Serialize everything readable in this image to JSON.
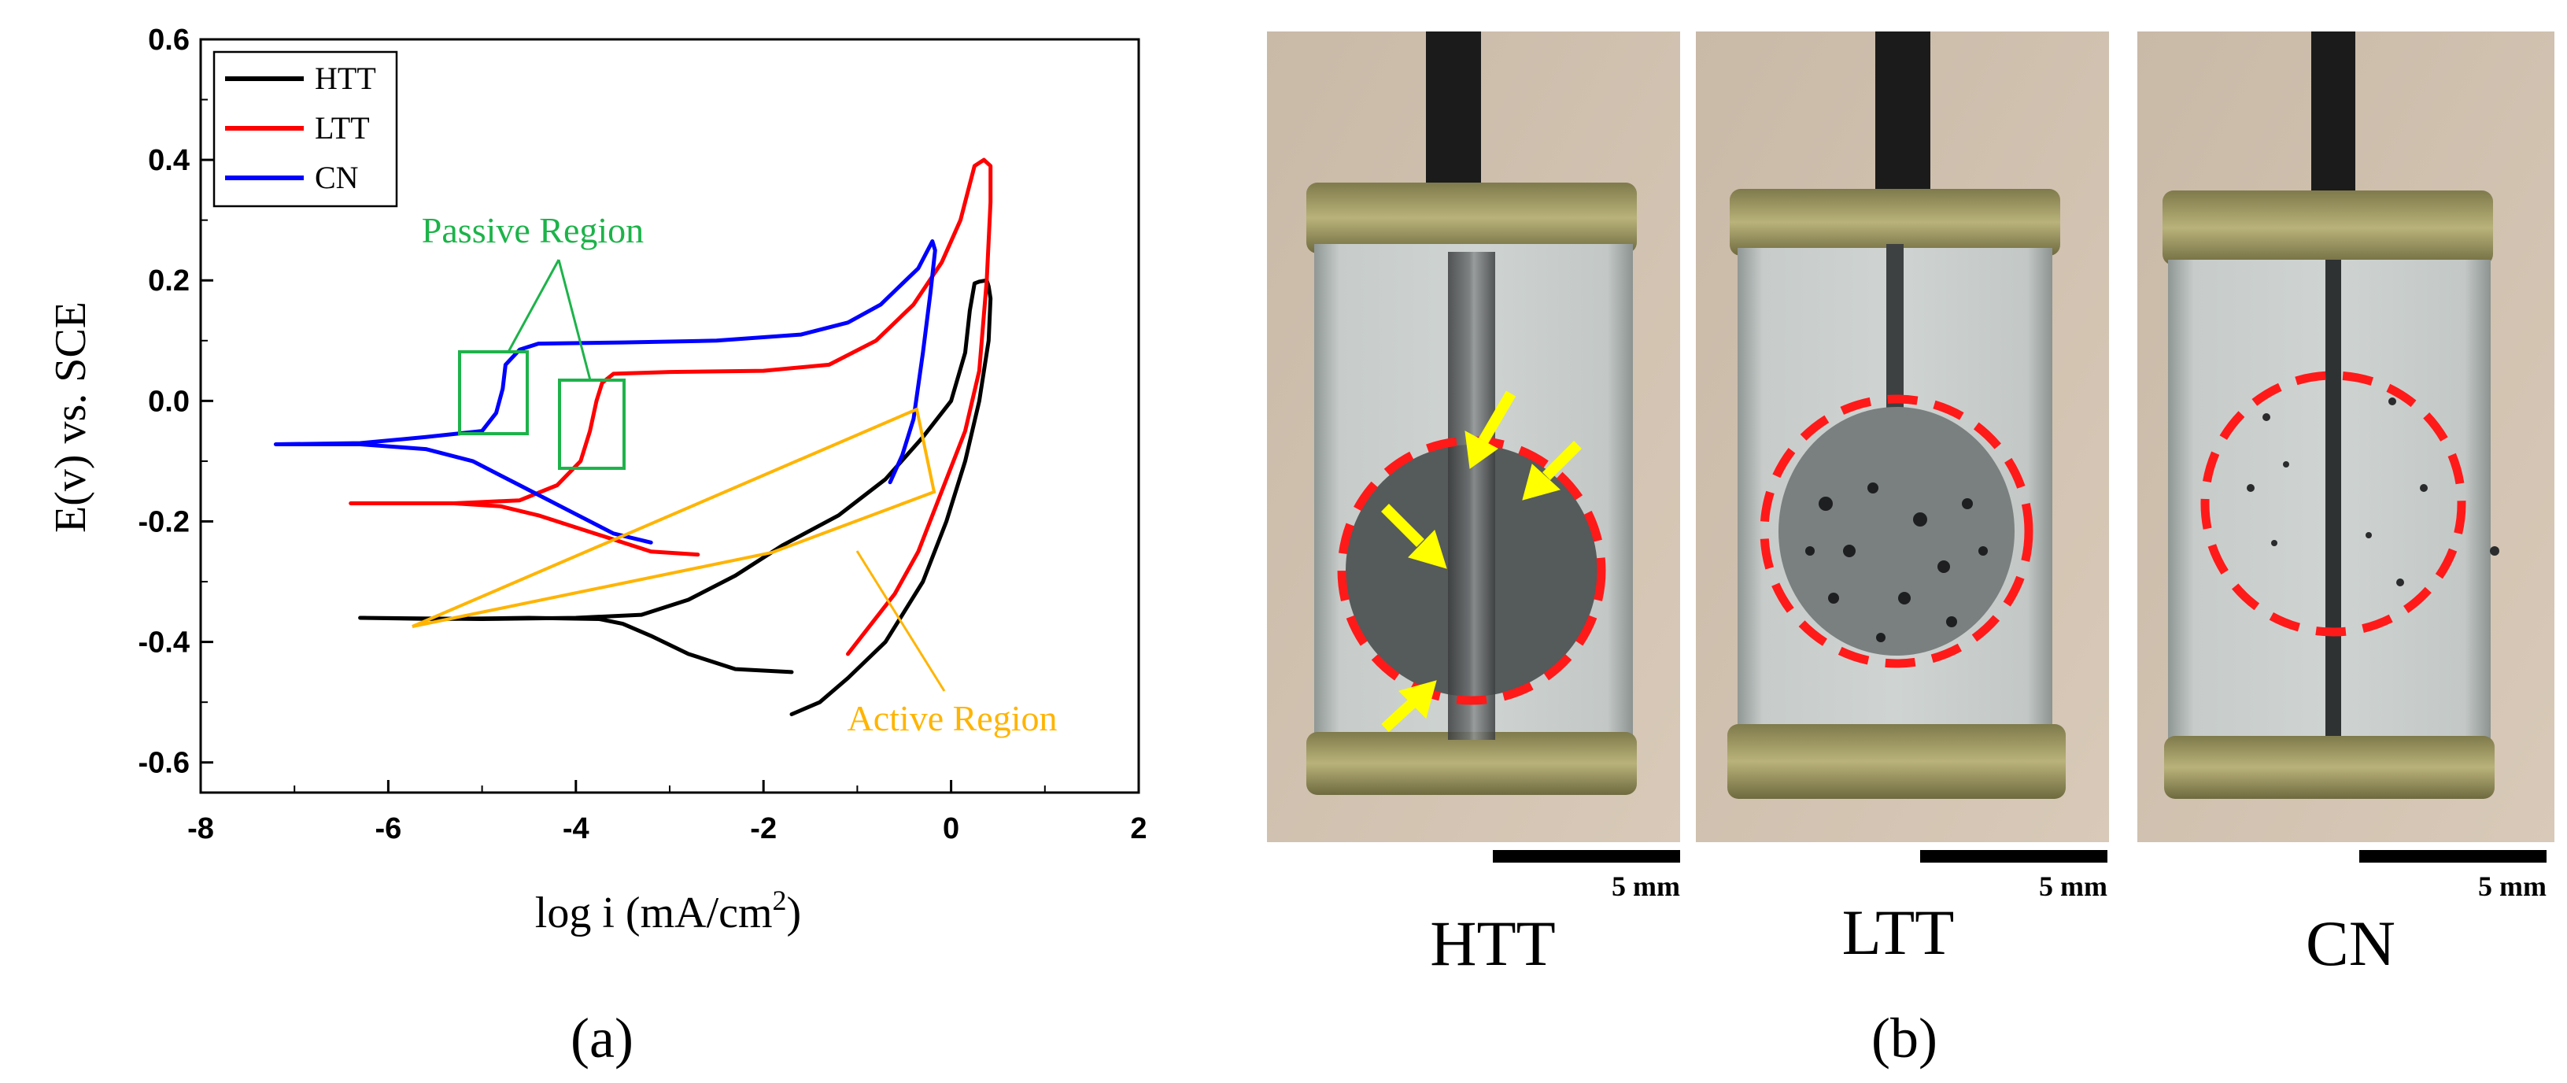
{
  "chart_data": {
    "type": "line",
    "xlabel": "log i (mA/cm",
    "xlabel_sup": "2",
    "xlabel_end": ")",
    "ylabel": "E(v) vs. SCE",
    "xlim": [
      -8,
      2
    ],
    "ylim": [
      -0.65,
      0.6
    ],
    "xticks": [
      "-8",
      "-6",
      "-4",
      "-2",
      "0",
      "2"
    ],
    "yticks": [
      "0.6",
      "0.4",
      "0.2",
      "0.0",
      "-0.2",
      "-0.4",
      "-0.6"
    ],
    "legend_position": "top-left",
    "series": [
      {
        "name": "HTT",
        "color": "#000000",
        "points": [
          [
            -1.7,
            -0.45
          ],
          [
            -2.3,
            -0.445
          ],
          [
            -2.8,
            -0.42
          ],
          [
            -3.2,
            -0.39
          ],
          [
            -3.5,
            -0.37
          ],
          [
            -3.75,
            -0.362
          ],
          [
            -4.5,
            -0.36
          ],
          [
            -5.5,
            -0.362
          ],
          [
            -6.3,
            -0.36
          ],
          [
            -5.0,
            -0.362
          ],
          [
            -4.0,
            -0.36
          ],
          [
            -3.3,
            -0.355
          ],
          [
            -2.8,
            -0.33
          ],
          [
            -2.3,
            -0.29
          ],
          [
            -1.8,
            -0.24
          ],
          [
            -1.2,
            -0.19
          ],
          [
            -0.7,
            -0.13
          ],
          [
            -0.3,
            -0.06
          ],
          [
            0.0,
            0.0
          ],
          [
            0.15,
            0.08
          ],
          [
            0.2,
            0.15
          ],
          [
            0.25,
            0.195
          ],
          [
            0.3,
            0.198
          ],
          [
            0.38,
            0.2
          ],
          [
            0.4,
            0.19
          ],
          [
            0.42,
            0.17
          ],
          [
            0.4,
            0.1
          ],
          [
            0.3,
            0.0
          ],
          [
            0.15,
            -0.1
          ],
          [
            -0.05,
            -0.2
          ],
          [
            -0.3,
            -0.3
          ],
          [
            -0.7,
            -0.4
          ],
          [
            -1.1,
            -0.46
          ],
          [
            -1.4,
            -0.5
          ],
          [
            -1.7,
            -0.52
          ]
        ]
      },
      {
        "name": "LTT",
        "color": "#ff0000",
        "points": [
          [
            -2.7,
            -0.255
          ],
          [
            -3.2,
            -0.25
          ],
          [
            -3.6,
            -0.23
          ],
          [
            -4.0,
            -0.21
          ],
          [
            -4.4,
            -0.19
          ],
          [
            -4.8,
            -0.175
          ],
          [
            -5.3,
            -0.17
          ],
          [
            -6.4,
            -0.17
          ],
          [
            -5.3,
            -0.17
          ],
          [
            -4.6,
            -0.165
          ],
          [
            -4.2,
            -0.14
          ],
          [
            -3.95,
            -0.1
          ],
          [
            -3.85,
            -0.05
          ],
          [
            -3.78,
            0.0
          ],
          [
            -3.72,
            0.03
          ],
          [
            -3.6,
            0.045
          ],
          [
            -3.0,
            0.048
          ],
          [
            -2.0,
            0.05
          ],
          [
            -1.3,
            0.06
          ],
          [
            -0.8,
            0.1
          ],
          [
            -0.4,
            0.16
          ],
          [
            -0.1,
            0.23
          ],
          [
            0.1,
            0.3
          ],
          [
            0.2,
            0.36
          ],
          [
            0.25,
            0.39
          ],
          [
            0.35,
            0.4
          ],
          [
            0.42,
            0.39
          ],
          [
            0.42,
            0.33
          ],
          [
            0.38,
            0.2
          ],
          [
            0.3,
            0.05
          ],
          [
            0.15,
            -0.05
          ],
          [
            -0.1,
            -0.15
          ],
          [
            -0.35,
            -0.25
          ],
          [
            -0.6,
            -0.32
          ],
          [
            -0.9,
            -0.38
          ],
          [
            -1.1,
            -0.42
          ]
        ]
      },
      {
        "name": "CN",
        "color": "#0000ff",
        "points": [
          [
            -3.2,
            -0.235
          ],
          [
            -3.6,
            -0.22
          ],
          [
            -4.1,
            -0.18
          ],
          [
            -4.6,
            -0.14
          ],
          [
            -5.1,
            -0.1
          ],
          [
            -5.6,
            -0.08
          ],
          [
            -6.3,
            -0.072
          ],
          [
            -7.2,
            -0.072
          ],
          [
            -6.3,
            -0.07
          ],
          [
            -5.6,
            -0.06
          ],
          [
            -5.0,
            -0.05
          ],
          [
            -4.85,
            -0.02
          ],
          [
            -4.78,
            0.02
          ],
          [
            -4.75,
            0.06
          ],
          [
            -4.6,
            0.085
          ],
          [
            -4.4,
            0.095
          ],
          [
            -3.5,
            0.097
          ],
          [
            -2.5,
            0.1
          ],
          [
            -1.6,
            0.11
          ],
          [
            -1.1,
            0.13
          ],
          [
            -0.75,
            0.16
          ],
          [
            -0.55,
            0.19
          ],
          [
            -0.35,
            0.22
          ],
          [
            -0.2,
            0.265
          ],
          [
            -0.17,
            0.25
          ],
          [
            -0.22,
            0.18
          ],
          [
            -0.3,
            0.08
          ],
          [
            -0.4,
            -0.03
          ],
          [
            -0.52,
            -0.09
          ],
          [
            -0.65,
            -0.135
          ]
        ]
      }
    ],
    "annotations": [
      {
        "text": "Passive Region",
        "color": "#1db34a"
      },
      {
        "text": "Active Region",
        "color": "#ffb400"
      }
    ]
  },
  "figure": {
    "panel_a_label": "(a)",
    "panel_b_label": "(b)",
    "photos": [
      {
        "label": "HTT",
        "scale": "5 mm"
      },
      {
        "label": "LTT",
        "scale": "5 mm"
      },
      {
        "label": "CN",
        "scale": "5 mm"
      }
    ]
  }
}
